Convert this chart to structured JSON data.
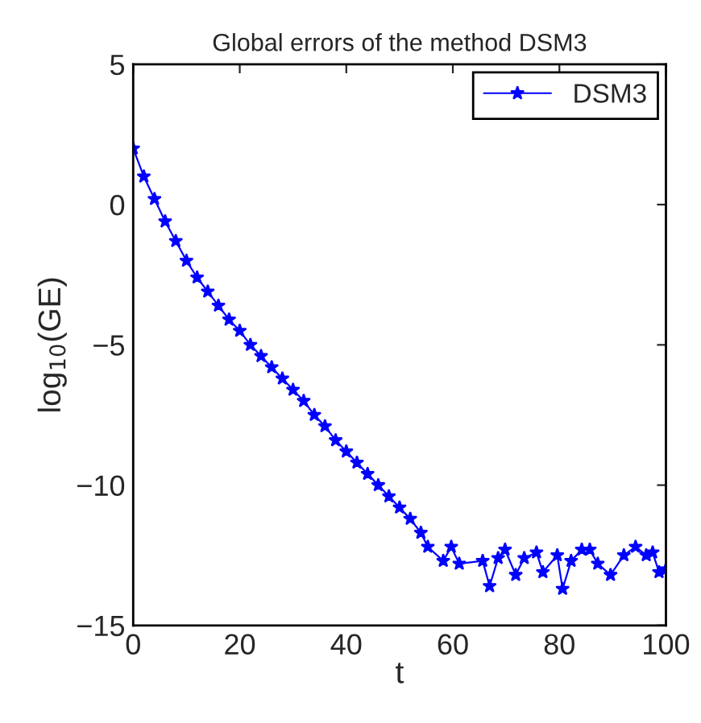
{
  "chart_data": {
    "type": "line",
    "title": "Global errors of the method DSM3",
    "xlabel": "t",
    "ylabel": "log$_{10}$(GE)",
    "x": [
      0,
      2,
      4,
      6,
      8,
      10,
      12,
      14,
      16,
      18,
      20,
      22,
      24,
      26,
      28,
      30,
      32,
      34,
      36,
      38,
      40,
      42,
      44,
      46,
      48,
      50,
      52,
      54,
      55.3,
      58.2,
      59.7,
      61.2,
      65.6,
      66.9,
      68.5,
      69.8,
      71.8,
      73.4,
      75.7,
      76.9,
      79.6,
      80.6,
      82.2,
      84.2,
      85.7,
      87.2,
      89.6,
      92.1,
      94.3,
      96.3,
      97.5,
      98.7,
      100
    ],
    "series": [
      {
        "name": "DSM3",
        "color": "#0000ff",
        "values": [
          2,
          1.0,
          0.2,
          -0.6,
          -1.3,
          -2.0,
          -2.6,
          -3.1,
          -3.6,
          -4.1,
          -4.5,
          -5.0,
          -5.4,
          -5.8,
          -6.2,
          -6.6,
          -7.0,
          -7.5,
          -7.9,
          -8.4,
          -8.8,
          -9.2,
          -9.6,
          -10.0,
          -10.4,
          -10.8,
          -11.2,
          -11.7,
          -12.2,
          -12.7,
          -12.2,
          -12.8,
          -12.7,
          -13.6,
          -12.6,
          -12.3,
          -13.2,
          -12.6,
          -12.4,
          -13.1,
          -12.5,
          -13.7,
          -12.7,
          -12.3,
          -12.3,
          -12.8,
          -13.2,
          -12.5,
          -12.2,
          -12.5,
          -12.4,
          -13.1,
          -13.0
        ]
      }
    ],
    "xlim": [
      0,
      100
    ],
    "ylim": [
      -15,
      5
    ],
    "xticks": [
      0,
      20,
      40,
      60,
      80,
      100
    ],
    "yticks": [
      -15,
      -10,
      -5,
      0,
      5
    ],
    "legend": "top right",
    "marker": "star",
    "line_style": "solid",
    "grid": false
  }
}
